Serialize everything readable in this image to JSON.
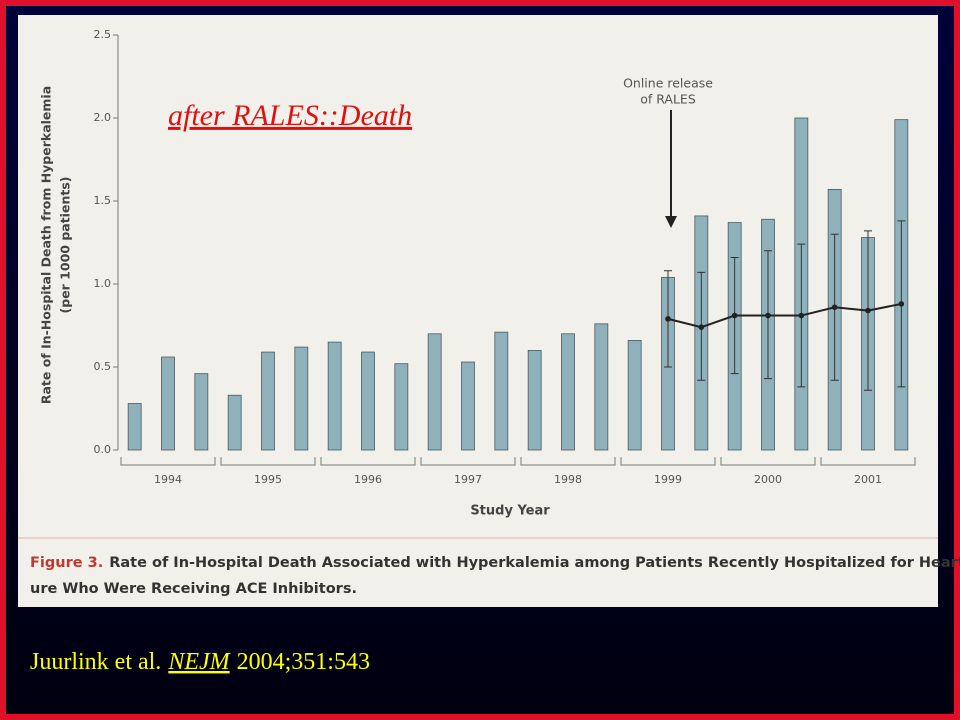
{
  "chart_data": {
    "type": "bar",
    "overlay_title": "after RALES::Death",
    "ylabel": [
      "Rate of In-Hospital Death from Hyperkalemia",
      "(per 1000 patients)"
    ],
    "xlabel": "Study Year",
    "annotation": [
      "Online release",
      "of RALES"
    ],
    "caption_label": "Figure 3.",
    "caption": [
      "Rate of In-Hospital Death Associated with Hyperkalemia among Patients Recently Hospitalized for Heart Fail-",
      "ure Who Were Receiving ACE Inhibitors."
    ],
    "categories": [
      null,
      null,
      null,
      null,
      null,
      null,
      null,
      null,
      null,
      null,
      null,
      null,
      null,
      null,
      null,
      null,
      null,
      null,
      null,
      null,
      null,
      null,
      null,
      null
    ],
    "year_labels": [
      "1994",
      "1995",
      "1996",
      "1997",
      "1998",
      "1999",
      "2000",
      "2001"
    ],
    "series": [
      {
        "type": "bar",
        "color": "#8fb1bb",
        "values": [
          0.28,
          0.56,
          0.46,
          0.33,
          0.59,
          0.62,
          0.65,
          0.59,
          0.52,
          0.7,
          0.53,
          0.71,
          0.6,
          0.7,
          0.76,
          0.66,
          1.04,
          1.41,
          1.37,
          1.39,
          2.0,
          1.57,
          1.28,
          1.99
        ]
      },
      {
        "type": "line",
        "color": "#222222",
        "values": [
          null,
          null,
          null,
          null,
          null,
          null,
          null,
          null,
          null,
          null,
          null,
          null,
          null,
          null,
          null,
          null,
          0.79,
          0.74,
          0.81,
          0.81,
          0.81,
          0.86,
          0.84,
          0.88
        ],
        "lower": [
          null,
          null,
          null,
          null,
          null,
          null,
          null,
          null,
          null,
          null,
          null,
          null,
          null,
          null,
          null,
          null,
          0.5,
          0.42,
          0.46,
          0.43,
          0.38,
          0.42,
          0.36,
          0.38
        ],
        "upper": [
          null,
          null,
          null,
          null,
          null,
          null,
          null,
          null,
          null,
          null,
          null,
          null,
          null,
          null,
          null,
          null,
          1.08,
          1.07,
          1.16,
          1.2,
          1.24,
          1.3,
          1.32,
          1.38
        ]
      }
    ],
    "ylim": [
      0,
      2.5
    ],
    "yticks": [
      {
        "value": 0,
        "label": "0.0"
      },
      0.5,
      {
        "value": 1,
        "label": "1.0"
      },
      1.5,
      {
        "value": 2,
        "label": "2.0"
      },
      2.5
    ]
  },
  "citation": {
    "authors": "Juurlink et al.",
    "journal": "NEJM",
    "details": "2004;351:543"
  }
}
